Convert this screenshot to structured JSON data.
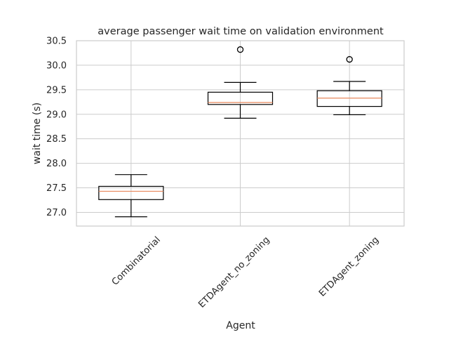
{
  "chart_data": {
    "type": "box",
    "title": "average passenger wait time on validation environment",
    "xlabel": "Agent",
    "ylabel": "wait time (s)",
    "ylim": [
      26.72,
      30.5
    ],
    "yticks": [
      "27.0",
      "27.5",
      "28.0",
      "28.5",
      "29.0",
      "29.5",
      "30.0",
      "30.5"
    ],
    "grid": true,
    "categories": [
      "Combinatorial",
      "ETDAgent_no_zoning",
      "ETDAgent_zoning"
    ],
    "boxes": [
      {
        "category": "Combinatorial",
        "whisker_low": 26.91,
        "q1": 27.26,
        "median": 27.43,
        "q3": 27.53,
        "whisker_high": 27.77,
        "fliers": []
      },
      {
        "category": "ETDAgent_no_zoning",
        "whisker_low": 28.92,
        "q1": 29.2,
        "median": 29.24,
        "q3": 29.45,
        "whisker_high": 29.65,
        "fliers": [
          30.32
        ]
      },
      {
        "category": "ETDAgent_zoning",
        "whisker_low": 28.99,
        "q1": 29.16,
        "median": 29.33,
        "q3": 29.48,
        "whisker_high": 29.67,
        "fliers": [
          30.12
        ]
      }
    ],
    "colors": {
      "median": "#e8875b",
      "box": "#000000",
      "grid": "#cccccc"
    }
  }
}
